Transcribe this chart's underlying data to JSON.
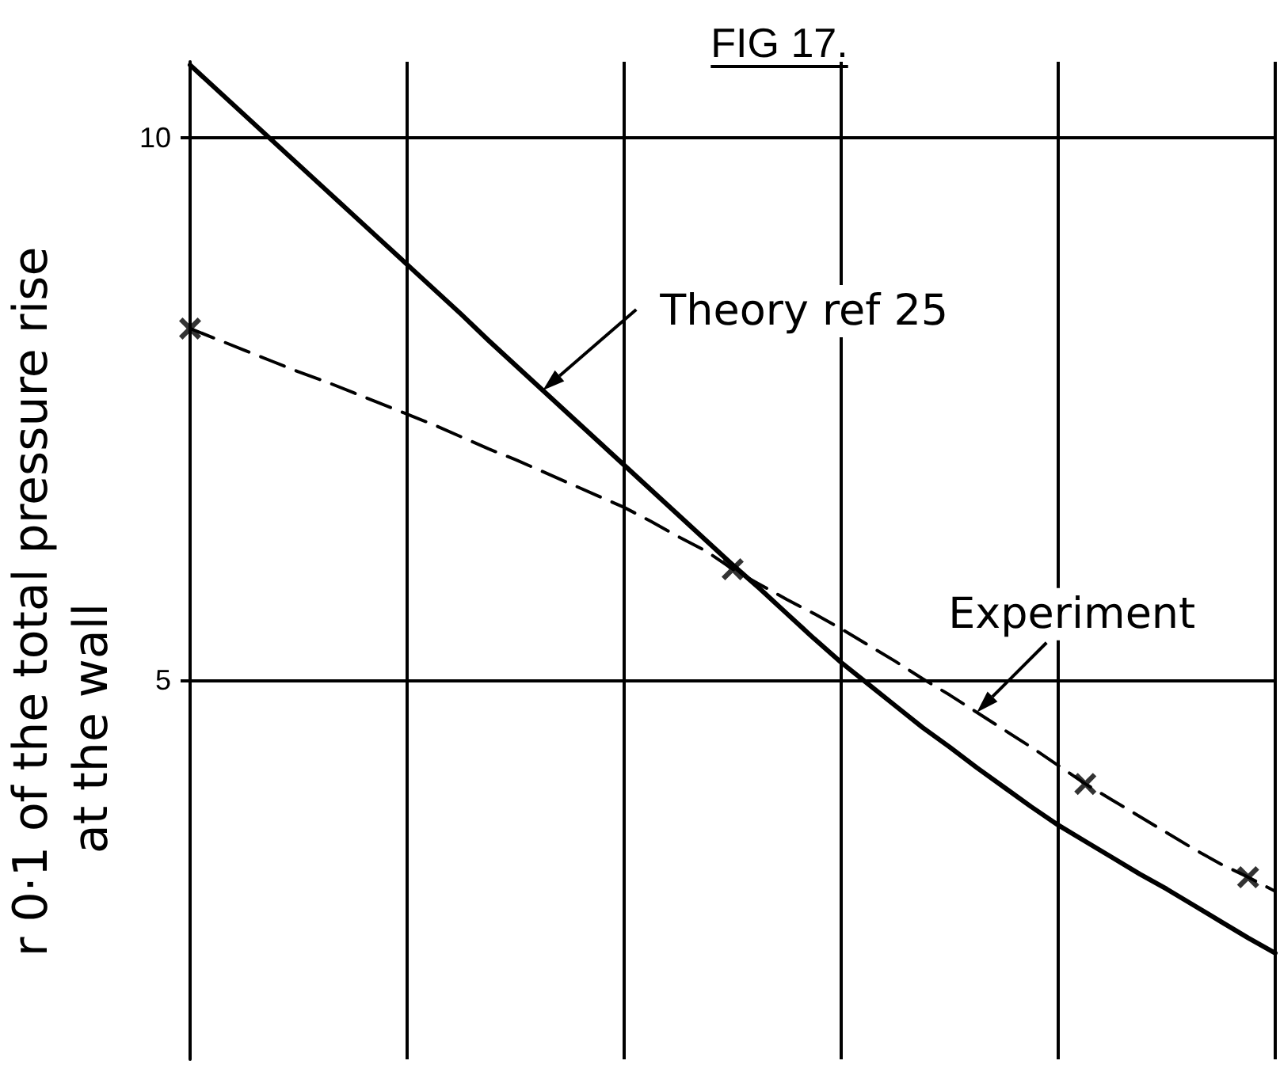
{
  "chart_data": {
    "type": "line",
    "title": "FIG 17.",
    "ylabel": "r 0·1 of the total pressure rise\nat the wall",
    "categories": [
      null,
      null,
      null,
      null,
      null,
      null,
      null,
      null,
      null,
      null,
      null,
      null,
      null,
      null,
      null,
      null,
      null,
      null,
      null,
      null,
      null,
      null,
      null,
      null,
      null,
      null,
      null,
      null,
      null,
      null,
      null,
      null,
      null,
      null,
      null,
      null,
      null,
      null,
      null,
      null,
      null
    ],
    "ylim": [
      1.5,
      10.7
    ],
    "yticks": [
      5,
      10
    ],
    "grid": true,
    "legend": false,
    "series": [
      {
        "name": "Theory ref 25",
        "color": "#000000",
        "line_style": "solid",
        "marker": "none",
        "values": [
          10.67,
          10.44,
          10.21,
          9.98,
          9.75,
          9.52,
          9.29,
          9.06,
          8.83,
          8.6,
          8.37,
          8.13,
          7.9,
          7.67,
          7.44,
          7.21,
          6.98,
          6.75,
          6.52,
          6.29,
          6.06,
          5.84,
          5.61,
          5.38,
          5.16,
          4.96,
          4.76,
          4.56,
          4.38,
          4.19,
          4.01,
          3.83,
          3.66,
          3.51,
          3.36,
          3.21,
          3.07,
          2.92,
          2.77,
          2.62,
          2.48
        ]
      },
      {
        "name": "Experiment",
        "color": "#000000",
        "line_style": "dashed",
        "marker": "none",
        "values": [
          8.24,
          8.14,
          8.04,
          7.94,
          7.84,
          7.75,
          7.65,
          7.55,
          7.45,
          7.35,
          7.24,
          7.13,
          7.03,
          6.92,
          6.81,
          6.7,
          6.59,
          6.46,
          6.32,
          6.19,
          6.02,
          5.88,
          5.74,
          5.61,
          5.47,
          5.32,
          5.17,
          5.01,
          4.86,
          4.7,
          4.54,
          4.38,
          4.21,
          4.04,
          3.89,
          3.74,
          3.59,
          3.44,
          3.3,
          3.18,
          3.05
        ]
      },
      {
        "type": "scatter",
        "color": "#000000",
        "marker": "cross",
        "values": [
          8.24,
          null,
          null,
          null,
          null,
          null,
          null,
          null,
          null,
          null,
          null,
          null,
          null,
          null,
          null,
          null,
          null,
          null,
          null,
          null,
          6.02,
          null,
          null,
          null,
          null,
          null,
          null,
          null,
          null,
          null,
          null,
          null,
          null,
          4.04,
          null,
          null,
          null,
          null,
          null,
          3.18,
          null
        ]
      }
    ]
  }
}
